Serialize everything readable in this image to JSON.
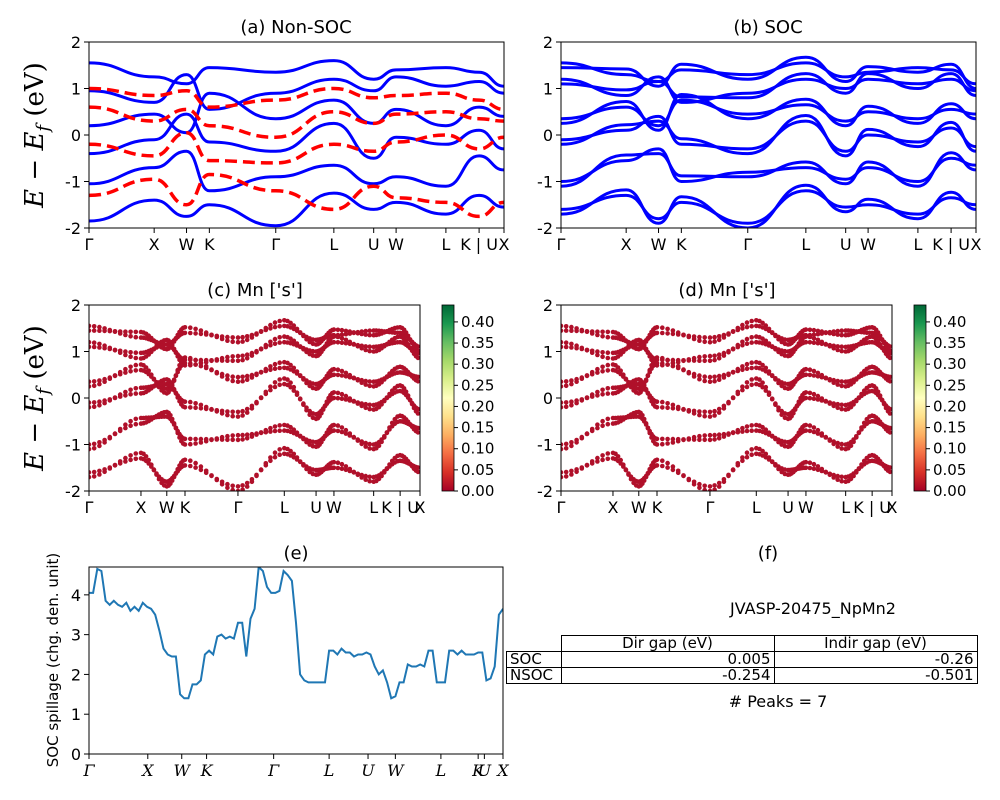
{
  "figure_id": "JVASP-20475_NpMn2",
  "chart_data": [
    {
      "panel": "a",
      "type": "line",
      "title": "(a) Non-SOC",
      "ylabel": "E − E_f (eV)",
      "ylim": [
        -2,
        2
      ],
      "yticks": [
        -2,
        -1,
        0,
        1,
        2
      ],
      "xticks": [
        "Γ",
        "X",
        "W",
        "K",
        "Γ",
        "L",
        "U",
        "W",
        "L",
        "K | U",
        "X"
      ],
      "xtick_positions": [
        0,
        0.157,
        0.235,
        0.29,
        0.45,
        0.59,
        0.686,
        0.74,
        0.86,
        0.94,
        1.0
      ],
      "series": [
        {
          "spin": "up",
          "color": "#0000ff",
          "style": "solid"
        },
        {
          "spin": "down",
          "color": "#ff0000",
          "style": "dashed"
        }
      ],
      "band_samples": {
        "up": [
          [
            1.55,
            1.25,
            1.1,
            1.45,
            1.35,
            1.6,
            1.2,
            1.4,
            1.45,
            1.35,
            1.05
          ],
          [
            0.95,
            0.7,
            1.3,
            0.55,
            0.9,
            1.2,
            0.95,
            1.25,
            1.05,
            1.15,
            0.9
          ],
          [
            0.2,
            0.45,
            0.05,
            0.9,
            0.35,
            0.75,
            0.25,
            0.55,
            0.2,
            0.6,
            0.4
          ],
          [
            -0.4,
            -0.1,
            0.45,
            -0.15,
            -0.35,
            0.25,
            -0.5,
            -0.05,
            -0.2,
            0.1,
            -0.3
          ],
          [
            -1.05,
            -0.7,
            -0.35,
            -1.2,
            -0.9,
            -0.65,
            -1.05,
            -0.9,
            -1.1,
            -0.45,
            -0.75
          ],
          [
            -1.85,
            -1.4,
            -1.75,
            -1.5,
            -1.95,
            -1.25,
            -1.6,
            -1.45,
            -1.7,
            -1.3,
            -1.55
          ]
        ],
        "down": [
          [
            1.0,
            0.85,
            0.95,
            0.6,
            0.75,
            1.0,
            0.8,
            0.85,
            0.9,
            0.75,
            0.55
          ],
          [
            0.6,
            0.3,
            0.55,
            0.2,
            -0.05,
            0.5,
            0.25,
            0.45,
            0.5,
            0.35,
            0.3
          ],
          [
            -0.2,
            -0.45,
            0.05,
            -0.55,
            -0.6,
            -0.2,
            -0.35,
            -0.15,
            0.0,
            -0.3,
            -0.05
          ],
          [
            -1.3,
            -0.95,
            -1.5,
            -0.85,
            -1.2,
            -1.6,
            -1.1,
            -1.35,
            -1.45,
            -1.75,
            -1.45
          ]
        ]
      }
    },
    {
      "panel": "b",
      "type": "line",
      "title": "(b) SOC",
      "ylim": [
        -2,
        2
      ],
      "yticks": [
        -2,
        -1,
        0,
        1,
        2
      ],
      "xticks": [
        "Γ",
        "X",
        "W",
        "K",
        "Γ",
        "L",
        "U",
        "W",
        "L",
        "K | U",
        "X"
      ],
      "xtick_positions": [
        0,
        0.157,
        0.235,
        0.29,
        0.45,
        0.59,
        0.686,
        0.74,
        0.86,
        0.94,
        1.0
      ],
      "series": [
        {
          "spin": "soc",
          "color": "#0000ff",
          "style": "solid"
        }
      ],
      "band_samples": {
        "soc": [
          [
            1.55,
            1.3,
            1.15,
            1.4,
            1.3,
            1.55,
            1.25,
            1.35,
            1.45,
            1.4,
            1.1
          ],
          [
            1.2,
            0.85,
            1.25,
            0.7,
            0.9,
            1.2,
            1.0,
            1.2,
            1.1,
            1.2,
            0.95
          ],
          [
            0.35,
            0.6,
            0.2,
            0.75,
            0.45,
            0.65,
            0.3,
            0.5,
            0.35,
            0.55,
            0.45
          ],
          [
            -0.1,
            0.1,
            0.4,
            -0.2,
            -0.3,
            0.3,
            -0.35,
            0.0,
            -0.15,
            0.15,
            -0.25
          ],
          [
            -1.0,
            -0.55,
            -0.3,
            -1.0,
            -0.8,
            -0.7,
            -0.95,
            -0.7,
            -1.0,
            -0.5,
            -0.65
          ],
          [
            -1.6,
            -1.3,
            -1.8,
            -1.45,
            -1.9,
            -1.2,
            -1.55,
            -1.5,
            -1.7,
            -1.35,
            -1.5
          ]
        ]
      }
    },
    {
      "panel": "c",
      "type": "scatter",
      "title": "(c)  Mn ['s']",
      "ylabel": "E − E_f (eV)",
      "ylim": [
        -2,
        2
      ],
      "yticks": [
        -2,
        -1,
        0,
        1,
        2
      ],
      "xticks": [
        "Γ",
        "X",
        "W",
        "K",
        "Γ",
        "L",
        "U",
        "W",
        "L",
        "K | U",
        "X"
      ],
      "xtick_positions": [
        0,
        0.157,
        0.235,
        0.29,
        0.45,
        0.59,
        0.686,
        0.74,
        0.86,
        0.94,
        1.0
      ],
      "colorbar": {
        "cmap": "RdYlGn",
        "ticks": [
          "0.00",
          "0.05",
          "0.10",
          "0.15",
          "0.20",
          "0.25",
          "0.30",
          "0.35",
          "0.40"
        ],
        "range": [
          0,
          0.44
        ]
      },
      "point_color": "#b0102a"
    },
    {
      "panel": "d",
      "type": "scatter",
      "title": "(d) Mn ['s']",
      "ylim": [
        -2,
        2
      ],
      "yticks": [
        -2,
        -1,
        0,
        1,
        2
      ],
      "xticks": [
        "Γ",
        "X",
        "W",
        "K",
        "Γ",
        "L",
        "U",
        "W",
        "L",
        "K | U",
        "X"
      ],
      "xtick_positions": [
        0,
        0.157,
        0.235,
        0.29,
        0.45,
        0.59,
        0.686,
        0.74,
        0.86,
        0.94,
        1.0
      ],
      "colorbar": {
        "cmap": "RdYlGn",
        "ticks": [
          "0.00",
          "0.05",
          "0.10",
          "0.15",
          "0.20",
          "0.25",
          "0.30",
          "0.35",
          "0.40"
        ],
        "range": [
          0,
          0.44
        ]
      },
      "point_color": "#b0102a"
    },
    {
      "panel": "e",
      "type": "line",
      "title": "(e)",
      "ylabel": "SOC spillage (chg. den. unit)",
      "ylim": [
        0,
        4.7
      ],
      "yticks": [
        0,
        1,
        2,
        3,
        4
      ],
      "xticks": [
        "Γ",
        "X",
        "W",
        "K",
        "Γ",
        "L",
        "U",
        "W",
        "L",
        "K",
        "U",
        "X"
      ],
      "xtick_positions": [
        0,
        0.142,
        0.224,
        0.284,
        0.446,
        0.58,
        0.674,
        0.74,
        0.85,
        0.94,
        0.955,
        1.0
      ],
      "x": [
        0,
        0.01,
        0.02,
        0.03,
        0.04,
        0.05,
        0.06,
        0.07,
        0.08,
        0.09,
        0.1,
        0.11,
        0.12,
        0.13,
        0.14,
        0.15,
        0.16,
        0.17,
        0.18,
        0.19,
        0.2,
        0.21,
        0.22,
        0.23,
        0.24,
        0.25,
        0.26,
        0.27,
        0.28,
        0.29,
        0.3,
        0.31,
        0.32,
        0.33,
        0.34,
        0.35,
        0.36,
        0.37,
        0.38,
        0.39,
        0.4,
        0.41,
        0.42,
        0.43,
        0.44,
        0.45,
        0.46,
        0.47,
        0.48,
        0.49,
        0.5,
        0.51,
        0.52,
        0.53,
        0.54,
        0.55,
        0.56,
        0.57,
        0.58,
        0.59,
        0.6,
        0.61,
        0.62,
        0.63,
        0.64,
        0.65,
        0.66,
        0.67,
        0.68,
        0.69,
        0.7,
        0.71,
        0.72,
        0.73,
        0.74,
        0.75,
        0.76,
        0.77,
        0.78,
        0.79,
        0.8,
        0.81,
        0.82,
        0.83,
        0.84,
        0.85,
        0.86,
        0.87,
        0.88,
        0.89,
        0.9,
        0.91,
        0.92,
        0.93,
        0.94,
        0.95,
        0.96,
        0.97,
        0.98,
        0.99,
        1.0
      ],
      "y": [
        4.05,
        4.05,
        4.65,
        4.6,
        3.85,
        3.75,
        3.85,
        3.75,
        3.7,
        3.8,
        3.6,
        3.7,
        3.6,
        3.8,
        3.7,
        3.65,
        3.5,
        3.1,
        2.65,
        2.5,
        2.45,
        2.45,
        1.5,
        1.4,
        1.4,
        1.75,
        1.75,
        1.85,
        2.5,
        2.6,
        2.5,
        2.95,
        3.0,
        2.9,
        2.95,
        2.9,
        3.3,
        3.3,
        2.45,
        3.4,
        3.65,
        4.7,
        4.6,
        4.2,
        4.05,
        4.05,
        4.1,
        4.6,
        4.5,
        4.35,
        3.3,
        2.0,
        1.85,
        1.8,
        1.8,
        1.8,
        1.8,
        1.8,
        2.6,
        2.6,
        2.5,
        2.65,
        2.55,
        2.55,
        2.45,
        2.5,
        2.5,
        2.55,
        2.5,
        2.2,
        2.0,
        2.1,
        1.8,
        1.4,
        1.45,
        1.8,
        1.8,
        2.25,
        2.2,
        2.2,
        2.25,
        2.2,
        2.6,
        2.6,
        1.8,
        1.8,
        1.8,
        2.6,
        2.6,
        2.5,
        2.6,
        2.5,
        2.5,
        2.5,
        2.55,
        2.55,
        1.85,
        1.9,
        2.2,
        3.5,
        3.65
      ]
    }
  ],
  "panel_f": {
    "title": "(f)",
    "material": "JVASP-20475_NpMn2",
    "table": {
      "columns": [
        "Dir gap (eV)",
        "Indir gap (eV)"
      ],
      "rows": [
        {
          "label": "SOC",
          "dir": "0.005",
          "indir": "-0.26"
        },
        {
          "label": "NSOC",
          "dir": "-0.254",
          "indir": "-0.501"
        }
      ]
    },
    "peaks": "# Peaks = 7"
  }
}
